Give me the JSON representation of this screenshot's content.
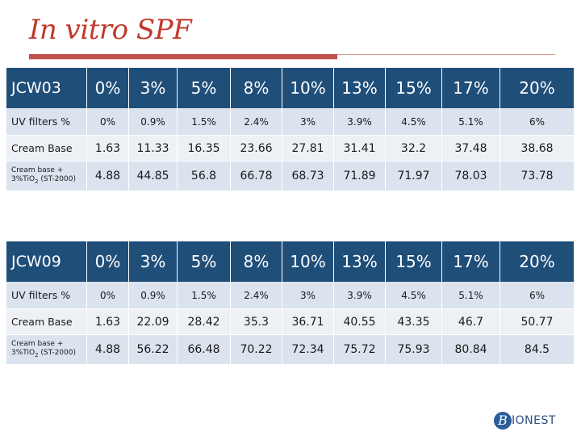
{
  "title": "In vitro SPF",
  "tables": [
    {
      "header": [
        "JCW03",
        "0%",
        "3%",
        "5%",
        "8%",
        "10%",
        "13%",
        "15%",
        "17%",
        "20%"
      ],
      "uv_row": [
        "UV filters %",
        "0%",
        "0.9%",
        "1.5%",
        "2.4%",
        "3%",
        "3.9%",
        "4.5%",
        "5.1%",
        "6%"
      ],
      "cream_row": [
        "Cream Base",
        "1.63",
        "11.33",
        "16.35",
        "23.66",
        "27.81",
        "31.41",
        "32.2",
        "37.48",
        "38.68"
      ],
      "tio2_row": {
        "label_line1": "Cream base +",
        "label_line2a": "3%TiO",
        "label_sub": "2",
        "label_line2b": " (ST-2000)",
        "values": [
          "4.88",
          "44.85",
          "56.8",
          "66.78",
          "68.73",
          "71.89",
          "71.97",
          "78.03",
          "73.78"
        ]
      }
    },
    {
      "header": [
        "JCW09",
        "0%",
        "3%",
        "5%",
        "8%",
        "10%",
        "13%",
        "15%",
        "17%",
        "20%"
      ],
      "uv_row": [
        "UV filters %",
        "0%",
        "0.9%",
        "1.5%",
        "2.4%",
        "3%",
        "3.9%",
        "4.5%",
        "5.1%",
        "6%"
      ],
      "cream_row": [
        "Cream Base",
        "1.63",
        "22.09",
        "28.42",
        "35.3",
        "36.71",
        "40.55",
        "43.35",
        "46.7",
        "50.77"
      ],
      "tio2_row": {
        "label_line1": "Cream base +",
        "label_line2a": "3%TiO",
        "label_sub": "2",
        "label_line2b": " (ST-2000)",
        "values": [
          "4.88",
          "56.22",
          "66.48",
          "70.22",
          "72.34",
          "75.72",
          "75.93",
          "80.84",
          "84.5"
        ]
      }
    }
  ],
  "logo": {
    "mark": "B",
    "text": "IONEST"
  },
  "colors": {
    "title": "#c0392b",
    "header_bg": "#1f4e79",
    "row_dark": "#dbe3ee",
    "row_light": "#edf1f6",
    "rule": "#c0504d"
  }
}
